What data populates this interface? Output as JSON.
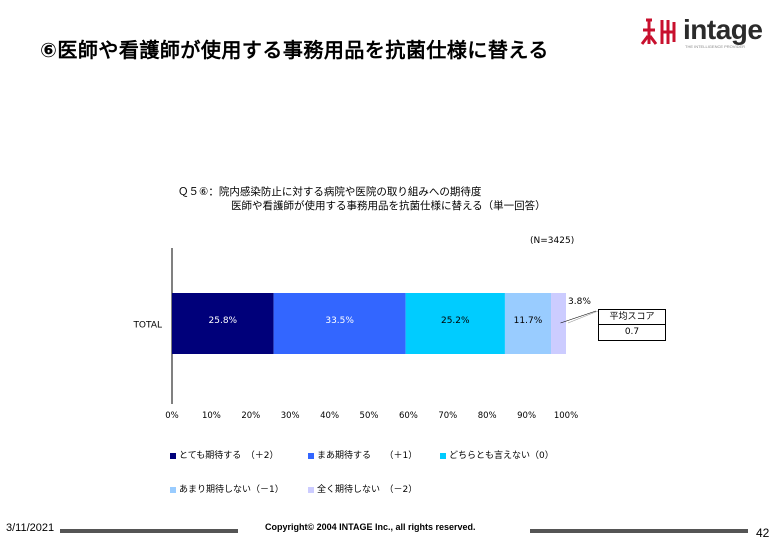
{
  "slide": {
    "title": "⑥医師や看護師が使用する事務用品を抗菌仕様に替える",
    "logo_text": "intage",
    "logo_tagline": "THE INTELLIGENCE PROVIDER",
    "footer_date": "3/11/2021",
    "footer_copyright": "Copyright© 2004 INTAGE Inc., all rights reserved.",
    "page_number": "42",
    "colors": {
      "logo_red": "#c8102e",
      "footer_rule": "#555555"
    }
  },
  "question": {
    "line1": "Ｑ５⑥：院内感染防止に対する病院や医院の取り組みへの期待度",
    "line2": "医師や看護師が使用する事務用品を抗菌仕様に替える（単一回答）"
  },
  "sample_size": "(N=3425)",
  "score": {
    "label": "平均スコア",
    "value": "0.7"
  },
  "chart_data": {
    "type": "bar",
    "orientation": "horizontal",
    "stacked": true,
    "categories": [
      "TOTAL"
    ],
    "xlim": [
      0,
      100
    ],
    "xticks": [
      "0%",
      "10%",
      "20%",
      "30%",
      "40%",
      "50%",
      "60%",
      "70%",
      "80%",
      "90%",
      "100%"
    ],
    "series": [
      {
        "name": "とても期待する　（＋2）",
        "values": [
          25.8
        ],
        "label": "25.8%",
        "color": "#00007a",
        "text_color": "#ffffff"
      },
      {
        "name": "まあ期待する　　（＋1）",
        "values": [
          33.5
        ],
        "label": "33.5%",
        "color": "#3366ff",
        "text_color": "#ffffff"
      },
      {
        "name": "どちらとも言えない（0）",
        "values": [
          25.2
        ],
        "label": "25.2%",
        "color": "#00ccff",
        "text_color": "#000000"
      },
      {
        "name": "あまり期待しない（－1）",
        "values": [
          11.7
        ],
        "label": "11.7%",
        "color": "#99ccff",
        "text_color": "#000000"
      },
      {
        "name": "全く期待しない　（－2）",
        "values": [
          3.8
        ],
        "label": "3.8%",
        "color": "#ccccff",
        "text_color": "#000000"
      }
    ],
    "grid": false,
    "legend": "bottom"
  }
}
